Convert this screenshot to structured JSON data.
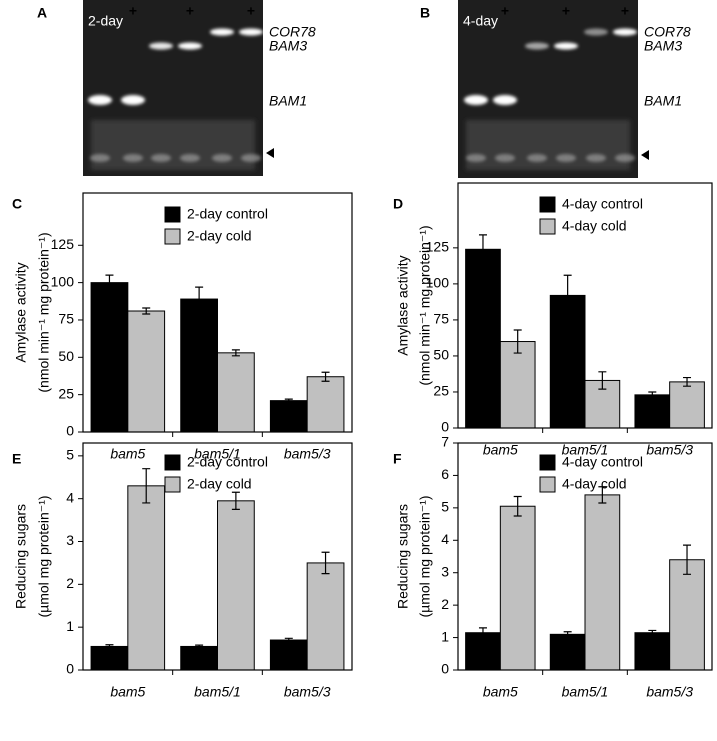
{
  "gels": [
    {
      "panel": "A",
      "day": "2-day",
      "plus": [
        "+",
        "+",
        "+"
      ],
      "genes": [
        "COR78",
        "BAM3",
        "BAM1"
      ]
    },
    {
      "panel": "B",
      "day": "4-day",
      "plus": [
        "+",
        "+",
        "+"
      ],
      "genes": [
        "COR78",
        "BAM3",
        "BAM1"
      ]
    }
  ],
  "chart_data": [
    {
      "type": "bar",
      "panel": "C",
      "ylabel": [
        "Amylase activity",
        "(nmol min⁻¹ mg protein⁻¹)"
      ],
      "categories": [
        "bam5",
        "bam5/1",
        "bam5/3"
      ],
      "series": [
        {
          "name": "2-day control",
          "color": "#000000",
          "values": [
            100,
            89,
            21
          ],
          "errors": [
            5,
            8,
            1
          ]
        },
        {
          "name": "2-day cold",
          "color": "#c0c0c0",
          "values": [
            81,
            53,
            37
          ],
          "errors": [
            2,
            2,
            3
          ]
        }
      ],
      "ylim": [
        0,
        160
      ],
      "yticks": [
        0,
        25,
        50,
        75,
        100,
        125
      ]
    },
    {
      "type": "bar",
      "panel": "D",
      "ylabel": [
        "Amylase activity",
        "(nmol min⁻¹ mg protein⁻¹)"
      ],
      "categories": [
        "bam5",
        "bam5/1",
        "bam5/3"
      ],
      "series": [
        {
          "name": "4-day control",
          "color": "#000000",
          "values": [
            124,
            92,
            23
          ],
          "errors": [
            10,
            14,
            2
          ]
        },
        {
          "name": "4-day cold",
          "color": "#c0c0c0",
          "values": [
            60,
            33,
            32
          ],
          "errors": [
            8,
            6,
            3
          ]
        }
      ],
      "ylim": [
        0,
        170
      ],
      "yticks": [
        0,
        25,
        50,
        75,
        100,
        125
      ]
    },
    {
      "type": "bar",
      "panel": "E",
      "ylabel": [
        "Reducing sugars",
        "(µmol mg protein⁻¹)"
      ],
      "categories": [
        "bam5",
        "bam5/1",
        "bam5/3"
      ],
      "series": [
        {
          "name": "2-day control",
          "color": "#000000",
          "values": [
            0.55,
            0.55,
            0.7
          ],
          "errors": [
            0.04,
            0.03,
            0.04
          ]
        },
        {
          "name": "2-day cold",
          "color": "#c0c0c0",
          "values": [
            4.3,
            3.95,
            2.5
          ],
          "errors": [
            0.4,
            0.2,
            0.25
          ]
        }
      ],
      "ylim": [
        0,
        5.3
      ],
      "yticks": [
        0,
        1,
        2,
        3,
        4,
        5
      ]
    },
    {
      "type": "bar",
      "panel": "F",
      "ylabel": [
        "Reducing sugars",
        "(µmol mg protein⁻¹)"
      ],
      "categories": [
        "bam5",
        "bam5/1",
        "bam5/3"
      ],
      "series": [
        {
          "name": "4-day control",
          "color": "#000000",
          "values": [
            1.15,
            1.1,
            1.15
          ],
          "errors": [
            0.15,
            0.08,
            0.07
          ]
        },
        {
          "name": "4-day cold",
          "color": "#c0c0c0",
          "values": [
            5.05,
            5.4,
            3.4
          ],
          "errors": [
            0.3,
            0.25,
            0.45
          ]
        }
      ],
      "ylim": [
        0,
        7
      ],
      "yticks": [
        0,
        1,
        2,
        3,
        4,
        5,
        6,
        7
      ]
    }
  ]
}
